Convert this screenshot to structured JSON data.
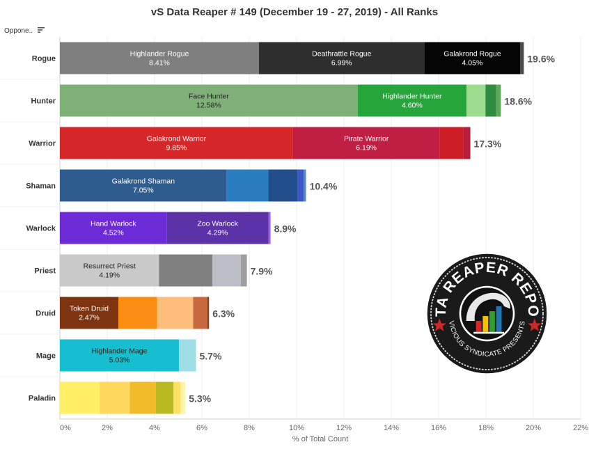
{
  "title": "vS Data Reaper # 149 (December 19 - 27, 2019) - All Ranks",
  "row_header_label": "Oppone..",
  "icons": {
    "sort": "sort-icon"
  },
  "logo": {
    "top_text": "DATA REAPER REPORT",
    "bottom_text": "VICIOUS SYNDICATE PRESENTS"
  },
  "chart_data": {
    "type": "bar",
    "orientation": "horizontal",
    "stacked": true,
    "xlabel": "% of Total Count",
    "xlim": [
      0,
      22
    ],
    "xticks": [
      "0%",
      "2%",
      "4%",
      "6%",
      "8%",
      "10%",
      "12%",
      "14%",
      "16%",
      "18%",
      "20%",
      "22%"
    ],
    "rows": [
      {
        "class": "Rogue",
        "total_label": "19.6%",
        "segments": [
          {
            "label": "Highlander Rogue",
            "value_label": "8.41%",
            "value": 8.41,
            "color": "#7f7f7f",
            "text": "#ffffff"
          },
          {
            "label": "Deathrattle Rogue",
            "value_label": "6.99%",
            "value": 6.99,
            "color": "#2e2e2e",
            "text": "#ffffff"
          },
          {
            "label": "Galakrond Rogue",
            "value_label": "4.05%",
            "value": 4.05,
            "color": "#050505",
            "text": "#ffffff"
          },
          {
            "label": "",
            "value_label": "",
            "value": 0.15,
            "color": "#4a4a4a",
            "text": "#ffffff"
          }
        ]
      },
      {
        "class": "Hunter",
        "total_label": "18.6%",
        "segments": [
          {
            "label": "Face Hunter",
            "value_label": "12.58%",
            "value": 12.58,
            "color": "#7fb077",
            "text": "#222222"
          },
          {
            "label": "Highlander Hunter",
            "value_label": "4.60%",
            "value": 4.6,
            "color": "#26a53a",
            "text": "#ffffff"
          },
          {
            "label": "",
            "value_label": "",
            "value": 0.8,
            "color": "#9ddc8e",
            "text": "#222222"
          },
          {
            "label": "",
            "value_label": "",
            "value": 0.45,
            "color": "#2e8b40",
            "text": "#ffffff"
          },
          {
            "label": "",
            "value_label": "",
            "value": 0.2,
            "color": "#5ea85a",
            "text": "#ffffff"
          }
        ]
      },
      {
        "class": "Warrior",
        "total_label": "17.3%",
        "segments": [
          {
            "label": "Galakrond Warrior",
            "value_label": "9.85%",
            "value": 9.85,
            "color": "#d62728",
            "text": "#ffffff"
          },
          {
            "label": "Pirate Warrior",
            "value_label": "6.19%",
            "value": 6.19,
            "color": "#c01f43",
            "text": "#ffffff"
          },
          {
            "label": "",
            "value_label": "",
            "value": 1.0,
            "color": "#cc1c24",
            "text": "#ffffff"
          },
          {
            "label": "",
            "value_label": "",
            "value": 0.3,
            "color": "#b81e3b",
            "text": "#ffffff"
          }
        ]
      },
      {
        "class": "Shaman",
        "total_label": "10.4%",
        "segments": [
          {
            "label": "Galakrond Shaman",
            "value_label": "7.05%",
            "value": 7.05,
            "color": "#2f5c8f",
            "text": "#ffffff"
          },
          {
            "label": "",
            "value_label": "",
            "value": 1.75,
            "color": "#2a7ec0",
            "text": "#ffffff"
          },
          {
            "label": "",
            "value_label": "",
            "value": 1.25,
            "color": "#224f8c",
            "text": "#ffffff"
          },
          {
            "label": "",
            "value_label": "",
            "value": 0.25,
            "color": "#3b57c6",
            "text": "#ffffff"
          },
          {
            "label": "",
            "value_label": "",
            "value": 0.1,
            "color": "#5b86cf",
            "text": "#ffffff"
          }
        ]
      },
      {
        "class": "Warlock",
        "total_label": "8.9%",
        "segments": [
          {
            "label": "Hand Warlock",
            "value_label": "4.52%",
            "value": 4.52,
            "color": "#6d2bd8",
            "text": "#ffffff"
          },
          {
            "label": "Zoo Warlock",
            "value_label": "4.29%",
            "value": 4.29,
            "color": "#5b32a8",
            "text": "#ffffff"
          },
          {
            "label": "",
            "value_label": "",
            "value": 0.09,
            "color": "#9a66e0",
            "text": "#ffffff"
          }
        ]
      },
      {
        "class": "Priest",
        "total_label": "7.9%",
        "segments": [
          {
            "label": "Resurrect Priest",
            "value_label": "4.19%",
            "value": 4.19,
            "color": "#c9c9c9",
            "text": "#222222"
          },
          {
            "label": "",
            "value_label": "",
            "value": 2.25,
            "color": "#808080",
            "text": "#ffffff"
          },
          {
            "label": "",
            "value_label": "",
            "value": 1.2,
            "color": "#bdbdc8",
            "text": "#222222"
          },
          {
            "label": "",
            "value_label": "",
            "value": 0.26,
            "color": "#9e9e9e",
            "text": "#ffffff"
          }
        ]
      },
      {
        "class": "Druid",
        "total_label": "6.3%",
        "segments": [
          {
            "label": "Token Druid",
            "value_label": "2.47%",
            "value": 2.47,
            "color": "#7e3410",
            "text": "#ffffff"
          },
          {
            "label": "",
            "value_label": "",
            "value": 1.63,
            "color": "#fb8c12",
            "text": "#ffffff"
          },
          {
            "label": "",
            "value_label": "",
            "value": 1.53,
            "color": "#fdbd7b",
            "text": "#222222"
          },
          {
            "label": "",
            "value_label": "",
            "value": 0.6,
            "color": "#c8683e",
            "text": "#ffffff"
          },
          {
            "label": "",
            "value_label": "",
            "value": 0.07,
            "color": "#8a3a14",
            "text": "#ffffff"
          }
        ]
      },
      {
        "class": "Mage",
        "total_label": "5.7%",
        "segments": [
          {
            "label": "Highlander Mage",
            "value_label": "5.03%",
            "value": 5.03,
            "color": "#17becf",
            "text": "#222222"
          },
          {
            "label": "",
            "value_label": "",
            "value": 0.72,
            "color": "#9fdde6",
            "text": "#222222"
          }
        ]
      },
      {
        "class": "Paladin",
        "total_label": "5.3%",
        "segments": [
          {
            "label": "",
            "value_label": "",
            "value": 1.68,
            "color": "#fff066",
            "text": "#222222"
          },
          {
            "label": "",
            "value_label": "",
            "value": 1.27,
            "color": "#ffd85e",
            "text": "#222222"
          },
          {
            "label": "",
            "value_label": "",
            "value": 1.1,
            "color": "#f2bb2a",
            "text": "#222222"
          },
          {
            "label": "",
            "value_label": "",
            "value": 0.75,
            "color": "#b8b923",
            "text": "#222222"
          },
          {
            "label": "",
            "value_label": "",
            "value": 0.3,
            "color": "#ffe066",
            "text": "#222222"
          },
          {
            "label": "",
            "value_label": "",
            "value": 0.2,
            "color": "#fff3a8",
            "text": "#222222"
          }
        ]
      }
    ]
  }
}
